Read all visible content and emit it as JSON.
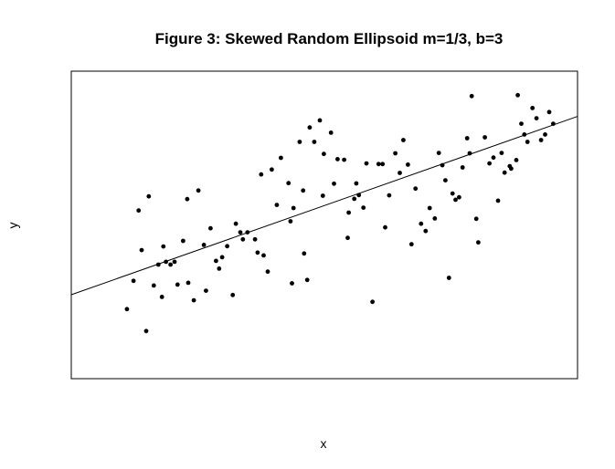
{
  "chart_data": {
    "type": "scatter",
    "title": "Figure 3: Skewed Random Ellipsoid m=1/3, b=3",
    "xlabel": "x",
    "ylabel": "y",
    "xlim": [
      0,
      100
    ],
    "ylim": [
      0,
      100
    ],
    "grid": false,
    "axes_ticks": false,
    "fit_line": {
      "slope": 0.58,
      "intercept": 27.3
    },
    "points": [
      [
        11.0,
        22.6
      ],
      [
        12.3,
        31.8
      ],
      [
        13.3,
        54.7
      ],
      [
        13.9,
        41.8
      ],
      [
        14.8,
        15.5
      ],
      [
        15.3,
        59.3
      ],
      [
        16.3,
        30.3
      ],
      [
        17.2,
        37.1
      ],
      [
        17.9,
        26.6
      ],
      [
        18.2,
        43.0
      ],
      [
        18.7,
        38.0
      ],
      [
        19.6,
        37.1
      ],
      [
        20.4,
        38.0
      ],
      [
        21.0,
        30.6
      ],
      [
        22.1,
        44.8
      ],
      [
        22.9,
        58.4
      ],
      [
        23.1,
        31.2
      ],
      [
        24.2,
        25.5
      ],
      [
        25.1,
        61.2
      ],
      [
        26.2,
        43.5
      ],
      [
        26.6,
        28.6
      ],
      [
        27.5,
        48.9
      ],
      [
        28.6,
        38.3
      ],
      [
        29.2,
        35.8
      ],
      [
        29.8,
        39.5
      ],
      [
        30.8,
        43.1
      ],
      [
        31.9,
        27.2
      ],
      [
        32.5,
        50.4
      ],
      [
        33.4,
        47.6
      ],
      [
        33.9,
        45.3
      ],
      [
        34.8,
        47.6
      ],
      [
        36.3,
        45.3
      ],
      [
        36.8,
        41.0
      ],
      [
        37.5,
        66.4
      ],
      [
        38.0,
        40.1
      ],
      [
        38.8,
        34.8
      ],
      [
        39.6,
        68.0
      ],
      [
        40.6,
        56.5
      ],
      [
        41.4,
        71.8
      ],
      [
        42.9,
        63.6
      ],
      [
        43.3,
        51.2
      ],
      [
        43.9,
        55.5
      ],
      [
        43.6,
        31.0
      ],
      [
        45.1,
        77.0
      ],
      [
        45.8,
        61.2
      ],
      [
        46.0,
        40.7
      ],
      [
        46.6,
        32.1
      ],
      [
        47.1,
        81.7
      ],
      [
        48.0,
        77.0
      ],
      [
        49.1,
        84.0
      ],
      [
        49.7,
        59.5
      ],
      [
        49.9,
        73.1
      ],
      [
        51.3,
        80.0
      ],
      [
        51.9,
        63.4
      ],
      [
        52.6,
        71.4
      ],
      [
        53.9,
        71.2
      ],
      [
        54.6,
        45.8
      ],
      [
        54.8,
        54.0
      ],
      [
        55.9,
        58.5
      ],
      [
        56.3,
        63.5
      ],
      [
        56.8,
        59.7
      ],
      [
        57.7,
        55.6
      ],
      [
        58.3,
        70.0
      ],
      [
        59.5,
        25.0
      ],
      [
        60.7,
        69.8
      ],
      [
        61.5,
        69.8
      ],
      [
        62.0,
        49.2
      ],
      [
        62.8,
        59.6
      ],
      [
        64.0,
        73.3
      ],
      [
        64.9,
        66.9
      ],
      [
        65.6,
        77.6
      ],
      [
        66.5,
        69.6
      ],
      [
        67.2,
        43.7
      ],
      [
        68.0,
        61.8
      ],
      [
        69.1,
        50.4
      ],
      [
        70.0,
        48.0
      ],
      [
        70.8,
        55.5
      ],
      [
        71.8,
        52.1
      ],
      [
        72.6,
        73.4
      ],
      [
        73.3,
        69.4
      ],
      [
        73.9,
        64.5
      ],
      [
        74.6,
        32.8
      ],
      [
        75.3,
        60.2
      ],
      [
        75.9,
        58.2
      ],
      [
        76.6,
        59.0
      ],
      [
        77.3,
        68.7
      ],
      [
        78.2,
        78.2
      ],
      [
        78.7,
        73.3
      ],
      [
        79.1,
        91.9
      ],
      [
        80.0,
        52.0
      ],
      [
        80.4,
        44.3
      ],
      [
        81.7,
        78.5
      ],
      [
        82.6,
        70.0
      ],
      [
        83.4,
        71.9
      ],
      [
        84.3,
        57.9
      ],
      [
        85.0,
        73.4
      ],
      [
        85.6,
        67.0
      ],
      [
        86.6,
        69.1
      ],
      [
        86.9,
        68.3
      ],
      [
        87.9,
        71.1
      ],
      [
        88.2,
        92.2
      ],
      [
        88.9,
        82.9
      ],
      [
        89.5,
        79.4
      ],
      [
        90.1,
        77.0
      ],
      [
        91.1,
        88.0
      ],
      [
        91.9,
        84.7
      ],
      [
        92.8,
        77.6
      ],
      [
        93.6,
        79.4
      ],
      [
        94.4,
        86.7
      ],
      [
        95.2,
        82.9
      ]
    ]
  }
}
